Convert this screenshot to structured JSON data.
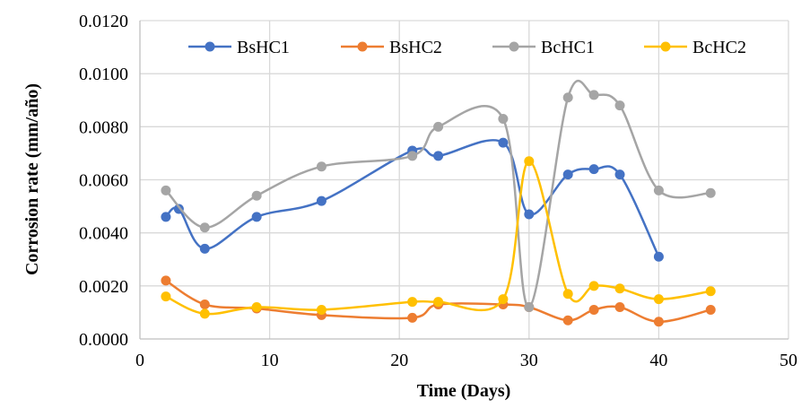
{
  "chart_data": {
    "type": "line",
    "smoothed": true,
    "xlabel": "Time (Days)",
    "ylabel": "Corrosion rate (mm/año)",
    "xlim": [
      0,
      50
    ],
    "ylim": [
      0,
      0.012
    ],
    "xticks": [
      "0",
      "10",
      "20",
      "30",
      "40",
      "50"
    ],
    "yticks": [
      "0.0000",
      "0.0020",
      "0.0040",
      "0.0060",
      "0.0080",
      "0.0100",
      "0.0120"
    ],
    "grid": true,
    "legend_position": "top",
    "series": [
      {
        "name": "BsHC1",
        "color": "#4472C4",
        "x": [
          2,
          3,
          5,
          9,
          14,
          21,
          23,
          28,
          30,
          33,
          35,
          37,
          40
        ],
        "y": [
          0.0046,
          0.0049,
          0.0034,
          0.0046,
          0.0052,
          0.0071,
          0.0069,
          0.0074,
          0.0047,
          0.0062,
          0.0064,
          0.0062,
          0.0031
        ]
      },
      {
        "name": "BsHC2",
        "color": "#ED7D31",
        "x": [
          2,
          5,
          9,
          14,
          21,
          23,
          28,
          30,
          33,
          35,
          37,
          40,
          44
        ],
        "y": [
          0.0022,
          0.0013,
          0.00115,
          0.0009,
          0.0008,
          0.0013,
          0.0013,
          0.0012,
          0.0007,
          0.0011,
          0.0012,
          0.00065,
          0.0011
        ]
      },
      {
        "name": "BcHC1",
        "color": "#A5A5A5",
        "x": [
          2,
          5,
          9,
          14,
          21,
          23,
          28,
          30,
          33,
          35,
          37,
          40,
          44
        ],
        "y": [
          0.0056,
          0.0042,
          0.0054,
          0.0065,
          0.0069,
          0.008,
          0.0083,
          0.0012,
          0.0091,
          0.0092,
          0.0088,
          0.0056,
          0.0055
        ]
      },
      {
        "name": "BcHC2",
        "color": "#FFC000",
        "x": [
          2,
          5,
          9,
          14,
          21,
          23,
          28,
          30,
          33,
          35,
          37,
          40,
          44
        ],
        "y": [
          0.0016,
          0.00095,
          0.0012,
          0.0011,
          0.0014,
          0.0014,
          0.0015,
          0.0067,
          0.0017,
          0.002,
          0.0019,
          0.0015,
          0.0018
        ]
      }
    ]
  }
}
